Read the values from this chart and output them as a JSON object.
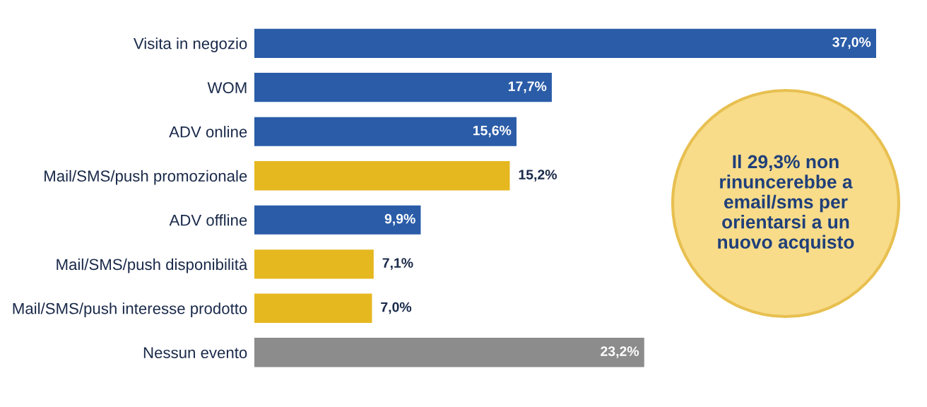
{
  "chart_data": {
    "type": "bar",
    "orientation": "horizontal",
    "categories": [
      "Visita in negozio",
      "WOM",
      "ADV online",
      "Mail/SMS/push promozionale",
      "ADV offline",
      "Mail/SMS/push disponibilità",
      "Mail/SMS/push interesse prodotto",
      "Nessun evento"
    ],
    "values": [
      37.0,
      17.7,
      15.6,
      15.2,
      9.9,
      7.1,
      7.0,
      23.2
    ],
    "colors": [
      "#2a5ca8",
      "#2a5ca8",
      "#2a5ca8",
      "#e6b820",
      "#2a5ca8",
      "#e6b820",
      "#e6b820",
      "#8c8c8c"
    ],
    "value_labels": [
      "37,0%",
      "17,7%",
      "15,6%",
      "15,2%",
      "9,9%",
      "7,1%",
      "7,0%",
      "23,2%"
    ],
    "xlim": [
      0,
      37
    ],
    "tick_labels": "y",
    "grid": false,
    "legend": false,
    "annotations": [
      "Il 29,3% non\nrinuncerebbe a\nemail/sms per\norientarsi a un\nnuovo acquisto"
    ]
  }
}
